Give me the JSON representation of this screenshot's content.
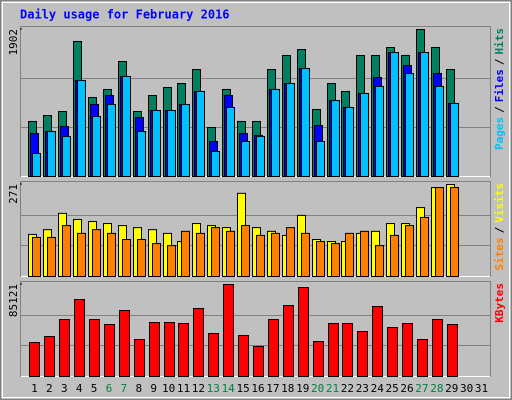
{
  "chart_data": [
    {
      "type": "bar",
      "title": "Daily usage for February 2016",
      "categories": [
        "1",
        "2",
        "3",
        "4",
        "5",
        "6",
        "7",
        "8",
        "9",
        "10",
        "11",
        "12",
        "13",
        "14",
        "15",
        "16",
        "17",
        "18",
        "19",
        "20",
        "21",
        "22",
        "23",
        "24",
        "25",
        "26",
        "27",
        "28",
        "29",
        "30",
        "31"
      ],
      "weekend_days": [
        6,
        7,
        13,
        14,
        20,
        21,
        27,
        28
      ],
      "weekend_color": "#008040",
      "legend_separator": "/",
      "ylim": [
        0,
        1902
      ],
      "yticks": [
        1902
      ],
      "series": [
        {
          "name": "Hits",
          "color": "#008060",
          "values": [
            712,
            789,
            841,
            1747,
            1022,
            1126,
            1488,
            841,
            1048,
            1152,
            1203,
            1384,
            634,
            1126,
            712,
            712,
            1384,
            1566,
            1643,
            867,
            1203,
            1100,
            1566,
            1566,
            1669,
            1566,
            1902,
            1669,
            1384,
            null,
            null
          ]
        },
        {
          "name": "Files",
          "color": "#0000ff",
          "values": [
            556,
            582,
            647,
            1242,
            932,
            1048,
            1294,
            763,
            854,
            854,
            932,
            1100,
            453,
            1048,
            556,
            531,
            1126,
            1203,
            1397,
            660,
            983,
            893,
            1074,
            1281,
            1604,
            1436,
            1604,
            1333,
            945,
            null,
            null
          ]
        },
        {
          "name": "Pages",
          "color": "#00c0ff",
          "values": [
            298,
            582,
            518,
            1242,
            776,
            932,
            1294,
            582,
            854,
            854,
            932,
            1100,
            324,
            893,
            453,
            518,
            1126,
            1203,
            1397,
            453,
            983,
            893,
            1074,
            1165,
            1604,
            1333,
            1604,
            1165,
            945,
            null,
            null
          ]
        }
      ]
    },
    {
      "type": "bar",
      "ylim": [
        0,
        271
      ],
      "yticks": [
        271
      ],
      "series": [
        {
          "name": "Visits",
          "color": "#ffff00",
          "values": [
            124,
            138,
            186,
            168,
            162,
            156,
            150,
            144,
            138,
            127,
            103,
            156,
            150,
            144,
            245,
            144,
            133,
            121,
            180,
            109,
            103,
            103,
            127,
            133,
            156,
            156,
            203,
            262,
            271,
            null,
            null
          ]
        },
        {
          "name": "Sites",
          "color": "#ff8000",
          "values": [
            115,
            115,
            150,
            127,
            138,
            127,
            109,
            109,
            97,
            91,
            133,
            127,
            144,
            133,
            150,
            121,
            127,
            144,
            127,
            103,
            97,
            127,
            133,
            91,
            121,
            150,
            174,
            262,
            262,
            null,
            null
          ]
        }
      ]
    },
    {
      "type": "bar",
      "ylim": [
        0,
        85121
      ],
      "yticks": [
        85121
      ],
      "series": [
        {
          "name": "KBytes",
          "color": "#ff0000",
          "values": [
            31450,
            37000,
            52725,
            71225,
            52725,
            48100,
            61050,
            34225,
            49950,
            49950,
            49025,
            62900,
            39775,
            85121,
            37925,
            27750,
            52725,
            65675,
            82325,
            32375,
            49025,
            49025,
            41625,
            64750,
            45325,
            49025,
            34225,
            52725,
            48100,
            null,
            null
          ]
        }
      ]
    }
  ]
}
